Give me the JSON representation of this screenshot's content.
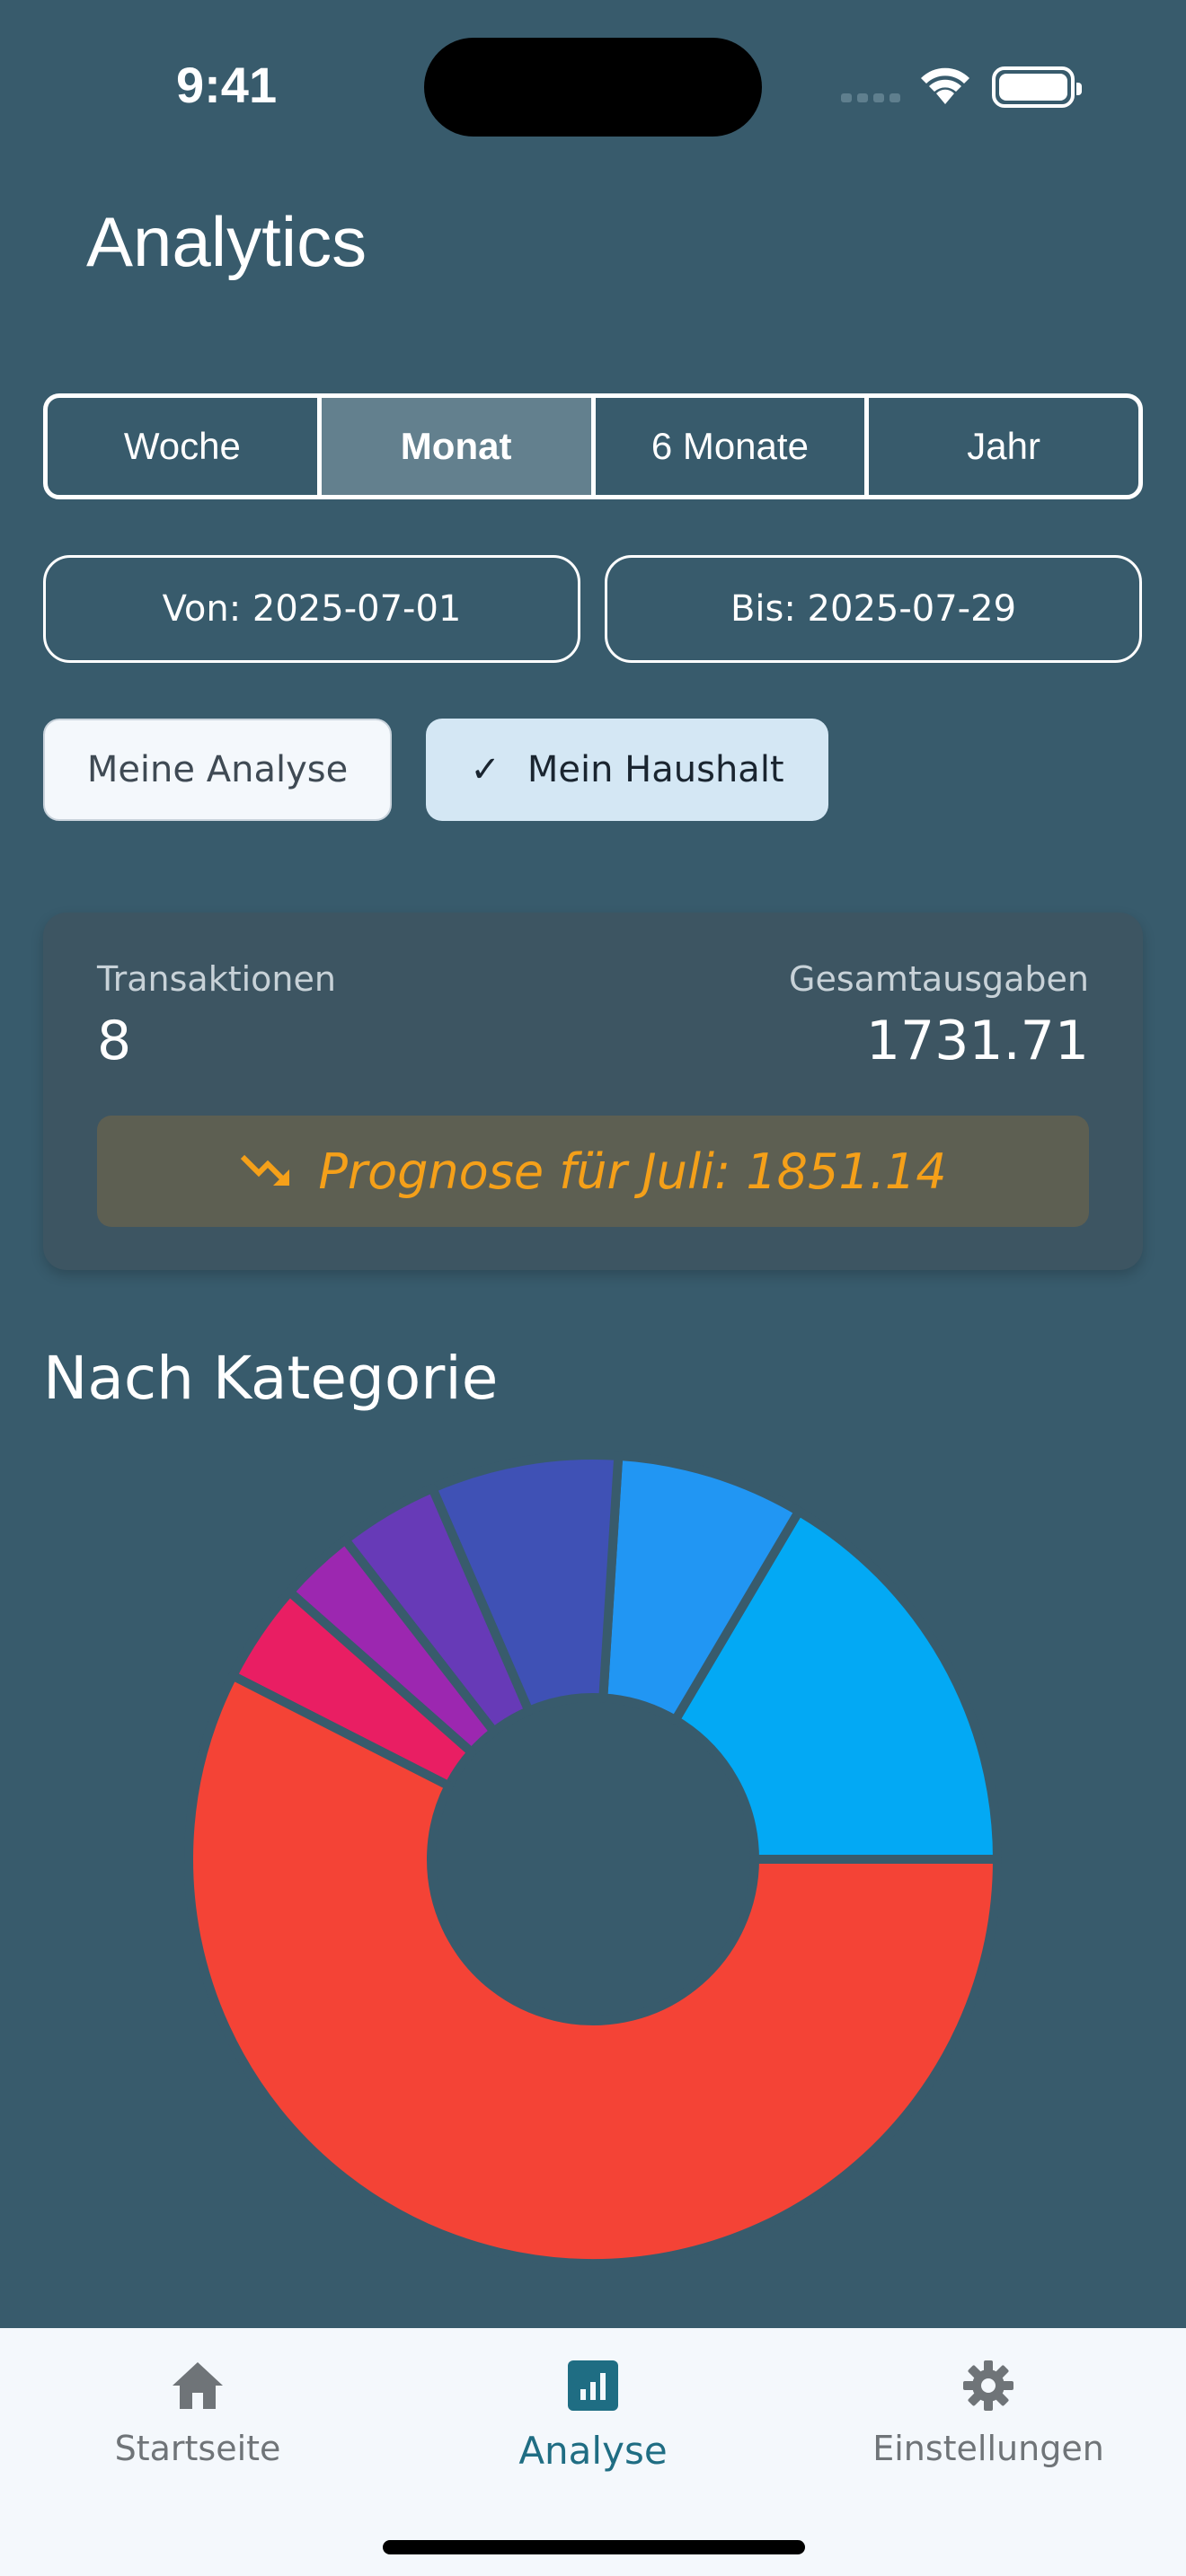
{
  "status": {
    "time": "9:41"
  },
  "header": {
    "title": "Analytics"
  },
  "period_tabs": [
    {
      "label": "Woche",
      "active": false
    },
    {
      "label": "Monat",
      "active": true
    },
    {
      "label": "6 Monate",
      "active": false
    },
    {
      "label": "Jahr",
      "active": false
    }
  ],
  "dates": {
    "from": "Von: 2025-07-01",
    "to": "Bis: 2025-07-29"
  },
  "filters": {
    "my_analysis": "Meine Analyse",
    "household": "Mein Haushalt",
    "household_selected": true
  },
  "summary": {
    "transactions_label": "Transaktionen",
    "transactions_value": "8",
    "total_label": "Gesamtausgaben",
    "total_value": "1731.71",
    "forecast_text": "Prognose für Juli: 1851.14"
  },
  "category_section": {
    "title": "Nach Kategorie"
  },
  "chart_data": {
    "type": "pie",
    "donut": true,
    "slices": [
      {
        "value": 16.5,
        "color": "#03a9f4"
      },
      {
        "value": 7.5,
        "color": "#2196f3"
      },
      {
        "value": 7.5,
        "color": "#3f51b5"
      },
      {
        "value": 4.0,
        "color": "#673ab7"
      },
      {
        "value": 3.0,
        "color": "#9c27b0"
      },
      {
        "value": 4.0,
        "color": "#e91e63"
      },
      {
        "value": 57.5,
        "color": "#f44336"
      }
    ],
    "start_angle_deg": 0,
    "direction": "counterclockwise"
  },
  "nav": {
    "home": "Startseite",
    "analyse": "Analyse",
    "settings": "Einstellungen",
    "active": "analyse"
  },
  "colors": {
    "background": "#385b6c",
    "forecast": "#f5a019",
    "nav_active": "#1f6d83"
  }
}
